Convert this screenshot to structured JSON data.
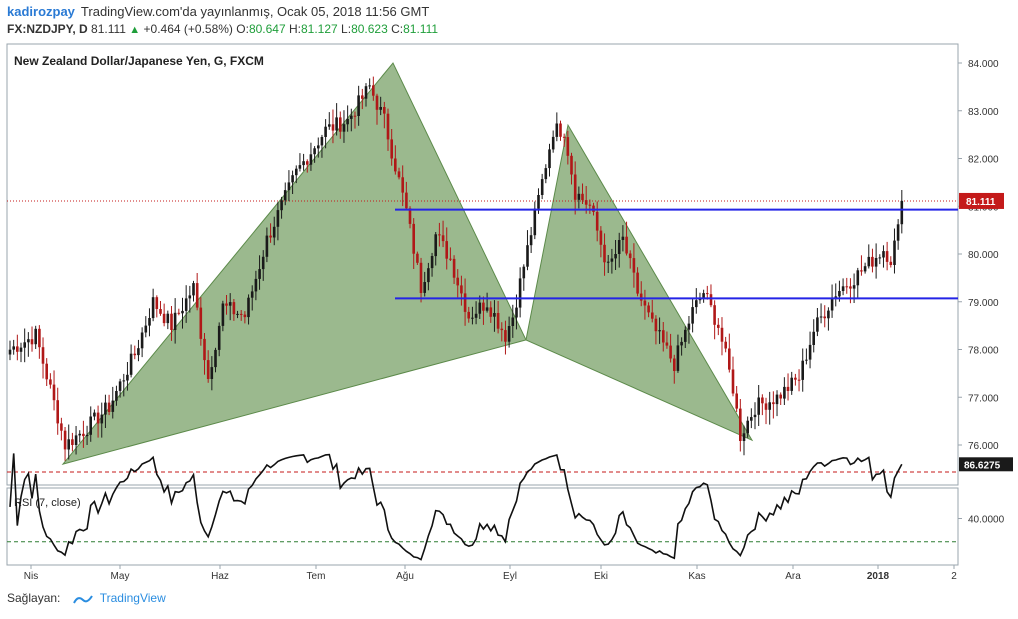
{
  "header": {
    "author": "kadirozpay",
    "published": "TradingView.com'da yayınlanmış, Ocak 05, 2018 11:56 GMT",
    "symbol": "FX:NZDJPY, D",
    "last": "81.111",
    "change": "+0.464 (+0.58%)",
    "o_label": "O:",
    "o_value": "80.647",
    "h_label": "H:",
    "h_value": "81.127",
    "l_label": "L:",
    "l_value": "80.623",
    "c_label": "C:",
    "c_value": "81.111"
  },
  "footer": {
    "provider_label": "Sağlayan:",
    "provider_name": "TradingView"
  },
  "colors": {
    "up": "#1a1a1a",
    "down": "#b01818",
    "pattern": "#8aad7a",
    "levels": "#2424e6",
    "price_tag": "#c41a1a",
    "rsi_tag": "#1a1a1a"
  },
  "chart_data": [
    {
      "type": "candlestick",
      "title": "New Zealand Dollar/Japanese Yen, G, FXCM",
      "ylim": [
        75.2,
        84.5
      ],
      "y_ticks": [
        "84.000",
        "83.000",
        "82.000",
        "81.000",
        "80.000",
        "79.000",
        "78.000",
        "77.000",
        "76.000"
      ],
      "x_ticks": [
        "Nis",
        "May",
        "Haz",
        "Tem",
        "Ağu",
        "Eyl",
        "Eki",
        "Kas",
        "Ara",
        "2018",
        "2"
      ],
      "last_price": "81.111",
      "keypoints": [
        [
          0,
          78.0
        ],
        [
          7,
          78.3
        ],
        [
          13,
          76.6
        ],
        [
          15,
          76.0
        ],
        [
          20,
          76.3
        ],
        [
          27,
          76.8
        ],
        [
          34,
          77.9
        ],
        [
          39,
          79.0
        ],
        [
          44,
          78.5
        ],
        [
          50,
          79.3
        ],
        [
          54,
          77.4
        ],
        [
          58,
          78.9
        ],
        [
          64,
          78.7
        ],
        [
          70,
          80.3
        ],
        [
          78,
          81.7
        ],
        [
          86,
          82.6
        ],
        [
          92,
          82.8
        ],
        [
          98,
          83.5
        ],
        [
          102,
          82.8
        ],
        [
          108,
          80.9
        ],
        [
          112,
          79.3
        ],
        [
          116,
          80.4
        ],
        [
          120,
          79.9
        ],
        [
          125,
          78.7
        ],
        [
          130,
          79.0
        ],
        [
          135,
          78.3
        ],
        [
          137,
          78.7
        ],
        [
          143,
          80.8
        ],
        [
          148,
          82.6
        ],
        [
          151,
          82.6
        ],
        [
          154,
          81.3
        ],
        [
          158,
          81.0
        ],
        [
          163,
          79.7
        ],
        [
          167,
          80.3
        ],
        [
          171,
          79.2
        ],
        [
          175,
          78.5
        ],
        [
          181,
          77.7
        ],
        [
          186,
          78.8
        ],
        [
          189,
          79.2
        ],
        [
          193,
          78.5
        ],
        [
          197,
          77.2
        ],
        [
          199,
          76.2
        ],
        [
          203,
          76.8
        ],
        [
          209,
          77.0
        ],
        [
          215,
          77.4
        ],
        [
          219,
          78.4
        ],
        [
          225,
          79.2
        ],
        [
          230,
          79.5
        ],
        [
          234,
          79.8
        ],
        [
          238,
          80.1
        ],
        [
          240,
          79.9
        ],
        [
          242,
          80.5
        ],
        [
          243,
          81.1
        ]
      ],
      "pattern": [
        [
          63,
          75.6
        ],
        [
          393,
          84.0
        ],
        [
          526,
          78.2
        ],
        [
          568,
          82.7
        ],
        [
          752,
          76.1
        ]
      ],
      "levels": [
        {
          "price": 80.93,
          "x_start": 395
        },
        {
          "price": 79.07,
          "x_start": 395
        }
      ]
    },
    {
      "type": "line",
      "title": "RSI (7, close)",
      "ylim": [
        0,
        100
      ],
      "y_ticks": [
        "40.0000"
      ],
      "overbought": 80,
      "oversold": 20,
      "last_value": "86.6275"
    }
  ]
}
